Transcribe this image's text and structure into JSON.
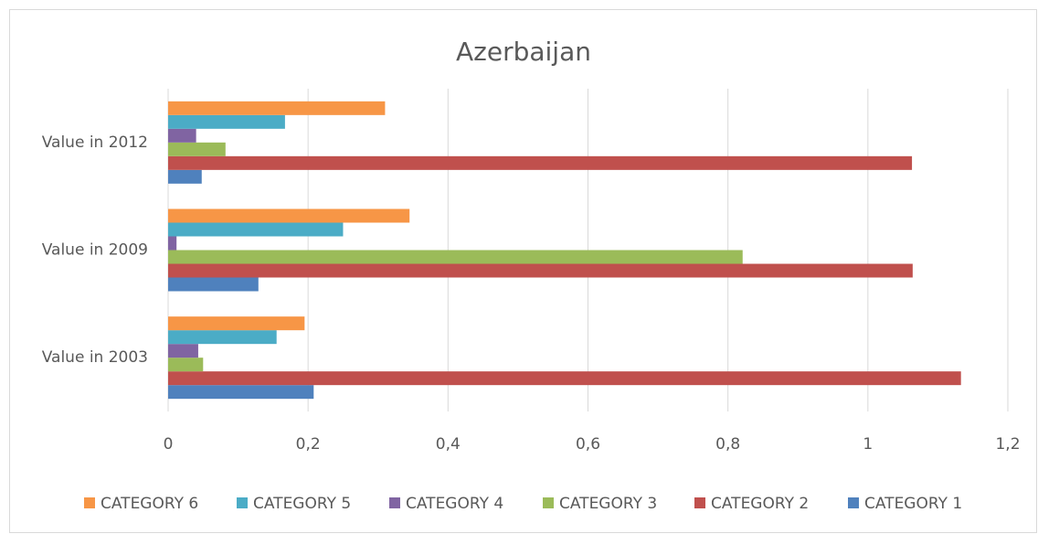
{
  "chart_data": {
    "type": "hbar",
    "title": "Azerbaijan",
    "categories": [
      "Value in 2003",
      "Value in 2009",
      "Value in 2012"
    ],
    "series": [
      {
        "name": "CATEGORY 1",
        "color": "#4f81bd",
        "values": [
          0.208,
          0.129,
          0.048
        ]
      },
      {
        "name": "CATEGORY 2",
        "color": "#c0504d",
        "values": [
          1.133,
          1.064,
          1.063
        ]
      },
      {
        "name": "CATEGORY 3",
        "color": "#9bbb59",
        "values": [
          0.05,
          0.821,
          0.082
        ]
      },
      {
        "name": "CATEGORY 4",
        "color": "#8064a2",
        "values": [
          0.043,
          0.012,
          0.04
        ]
      },
      {
        "name": "CATEGORY 5",
        "color": "#4bacc6",
        "values": [
          0.155,
          0.25,
          0.167
        ]
      },
      {
        "name": "CATEGORY 6",
        "color": "#f79646",
        "values": [
          0.195,
          0.345,
          0.31
        ]
      }
    ],
    "xlim": [
      0,
      1.2
    ],
    "xticks": [
      0,
      {
        "value": 0.2,
        "label": "0,2"
      },
      {
        "value": 0.4,
        "label": "0,4"
      },
      {
        "value": 0.6,
        "label": "0,6"
      },
      {
        "value": 0.8,
        "label": "0,8"
      },
      1,
      {
        "value": 1.2,
        "label": "1,2"
      }
    ],
    "grid": true,
    "legend": "bottom"
  }
}
